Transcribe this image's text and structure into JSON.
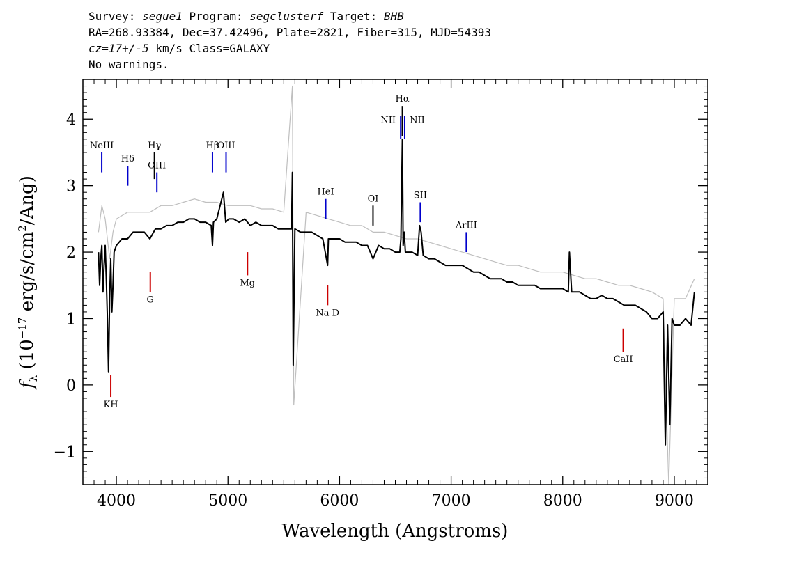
{
  "header": {
    "survey_label": "Survey:",
    "survey": "segue1",
    "program_label": "Program:",
    "program": "segclusterf",
    "target_label": "Target:",
    "target": "BHB",
    "line2": "RA=268.93384, Dec=37.42496, Plate=2821, Fiber=315, MJD=54393",
    "cz_label": "cz=17+/-5",
    "cz_rest": " km/s Class=GALAXY",
    "line4": "No warnings."
  },
  "chart_data": {
    "type": "line",
    "xlabel": "Wavelength (Angstroms)",
    "ylabel_fn": "f",
    "ylabel_sub": "λ",
    "ylabel_rest_a": " (10",
    "ylabel_exp": "−17",
    "ylabel_rest_b": " erg/s/cm",
    "ylabel_exp2": "2",
    "ylabel_rest_c": "/Ang)",
    "xlim": [
      3700,
      9300
    ],
    "ylim": [
      -1.5,
      4.6
    ],
    "xticks": [
      4000,
      5000,
      6000,
      7000,
      8000,
      9000
    ],
    "xtick_labels": [
      "4000",
      "5000",
      "6000",
      "7000",
      "8000",
      "9000"
    ],
    "yticks": [
      -1,
      0,
      1,
      2,
      3,
      4
    ],
    "ytick_labels": [
      "−1",
      "0",
      "1",
      "2",
      "3",
      "4"
    ],
    "series": [
      {
        "color": "#000000",
        "x": [
          3840,
          3850,
          3860,
          3870,
          3880,
          3890,
          3900,
          3910,
          3920,
          3930,
          3940,
          3950,
          3960,
          3970,
          3980,
          4000,
          4050,
          4100,
          4150,
          4200,
          4250,
          4300,
          4350,
          4400,
          4450,
          4500,
          4550,
          4600,
          4650,
          4700,
          4750,
          4800,
          4850,
          4861,
          4870,
          4900,
          4959,
          4980,
          5007,
          5050,
          5100,
          5150,
          5200,
          5250,
          5300,
          5350,
          5400,
          5450,
          5500,
          5550,
          5570,
          5577,
          5585,
          5600,
          5650,
          5700,
          5750,
          5800,
          5850,
          5893,
          5900,
          5950,
          6000,
          6050,
          6100,
          6150,
          6200,
          6250,
          6300,
          6350,
          6400,
          6450,
          6500,
          6540,
          6550,
          6563,
          6570,
          6580,
          6590,
          6600,
          6650,
          6700,
          6717,
          6731,
          6750,
          6800,
          6850,
          6900,
          6950,
          7000,
          7050,
          7100,
          7150,
          7200,
          7250,
          7300,
          7350,
          7400,
          7450,
          7500,
          7550,
          7600,
          7650,
          7700,
          7750,
          7800,
          7850,
          7900,
          7950,
          8000,
          8050,
          8060,
          8080,
          8100,
          8150,
          8200,
          8250,
          8300,
          8350,
          8400,
          8450,
          8500,
          8550,
          8600,
          8650,
          8700,
          8750,
          8800,
          8850,
          8900,
          8920,
          8940,
          8960,
          8980,
          9000,
          9050,
          9100,
          9150,
          9180
        ],
        "y": [
          2.0,
          1.5,
          1.9,
          2.1,
          1.4,
          1.8,
          2.1,
          1.6,
          1.0,
          0.2,
          1.3,
          1.9,
          1.1,
          1.5,
          2.0,
          2.1,
          2.2,
          2.2,
          2.3,
          2.3,
          2.3,
          2.2,
          2.35,
          2.35,
          2.4,
          2.4,
          2.45,
          2.45,
          2.5,
          2.5,
          2.45,
          2.45,
          2.4,
          2.1,
          2.45,
          2.5,
          2.9,
          2.45,
          2.5,
          2.5,
          2.45,
          2.5,
          2.4,
          2.45,
          2.4,
          2.4,
          2.4,
          2.35,
          2.35,
          2.35,
          2.35,
          3.2,
          0.3,
          2.35,
          2.3,
          2.3,
          2.3,
          2.25,
          2.2,
          1.8,
          2.2,
          2.2,
          2.2,
          2.15,
          2.15,
          2.15,
          2.1,
          2.1,
          1.9,
          2.1,
          2.05,
          2.05,
          2.0,
          2.0,
          2.2,
          3.7,
          2.1,
          2.3,
          2.0,
          2.0,
          2.0,
          1.95,
          2.4,
          2.3,
          1.95,
          1.9,
          1.9,
          1.85,
          1.8,
          1.8,
          1.8,
          1.8,
          1.75,
          1.7,
          1.7,
          1.65,
          1.6,
          1.6,
          1.6,
          1.55,
          1.55,
          1.5,
          1.5,
          1.5,
          1.5,
          1.45,
          1.45,
          1.45,
          1.45,
          1.45,
          1.4,
          2.0,
          1.4,
          1.4,
          1.4,
          1.35,
          1.3,
          1.3,
          1.35,
          1.3,
          1.3,
          1.25,
          1.2,
          1.2,
          1.2,
          1.15,
          1.1,
          1.0,
          1.0,
          1.1,
          -0.9,
          0.9,
          -0.6,
          1.0,
          0.9,
          0.9,
          1.0,
          0.9,
          1.4
        ]
      },
      {
        "color": "#bfbfbf",
        "x": [
          3840,
          3870,
          3900,
          3940,
          3970,
          4000,
          4100,
          4200,
          4300,
          4400,
          4500,
          4600,
          4700,
          4800,
          4900,
          5000,
          5100,
          5200,
          5300,
          5400,
          5500,
          5577,
          5590,
          5700,
          5800,
          5900,
          6000,
          6100,
          6200,
          6300,
          6400,
          6500,
          6600,
          6700,
          6800,
          6900,
          7000,
          7100,
          7200,
          7300,
          7400,
          7500,
          7600,
          7700,
          7800,
          7900,
          8000,
          8100,
          8200,
          8300,
          8400,
          8500,
          8600,
          8700,
          8800,
          8900,
          8950,
          9000,
          9100,
          9180
        ],
        "y": [
          2.3,
          2.7,
          2.5,
          1.9,
          2.3,
          2.5,
          2.6,
          2.6,
          2.6,
          2.7,
          2.7,
          2.75,
          2.8,
          2.75,
          2.75,
          2.7,
          2.7,
          2.7,
          2.65,
          2.65,
          2.6,
          4.5,
          -0.3,
          2.6,
          2.55,
          2.5,
          2.45,
          2.4,
          2.4,
          2.3,
          2.3,
          2.25,
          2.2,
          2.2,
          2.15,
          2.1,
          2.05,
          2.0,
          1.95,
          1.9,
          1.85,
          1.8,
          1.8,
          1.75,
          1.7,
          1.7,
          1.7,
          1.65,
          1.6,
          1.6,
          1.55,
          1.5,
          1.5,
          1.45,
          1.4,
          1.3,
          -1.5,
          1.3,
          1.3,
          1.6
        ]
      }
    ],
    "annotations": [
      {
        "label": "NeIII",
        "wave": 3869,
        "y0": 3.2,
        "y1": 3.5,
        "color": "#0000cc",
        "pos": "above"
      },
      {
        "label": "Hδ",
        "wave": 4102,
        "y0": 3.0,
        "y1": 3.3,
        "color": "#0000cc",
        "pos": "above"
      },
      {
        "label": "Hγ",
        "wave": 4341,
        "y0": 3.1,
        "y1": 3.5,
        "color": "#000000",
        "pos": "above"
      },
      {
        "label": "OIII",
        "wave": 4363,
        "y0": 2.9,
        "y1": 3.2,
        "color": "#0000cc",
        "pos": "above"
      },
      {
        "label": "Hβ",
        "wave": 4861,
        "y0": 3.2,
        "y1": 3.5,
        "color": "#0000cc",
        "pos": "above"
      },
      {
        "label": "OIII",
        "wave": 4983,
        "y0": 3.2,
        "y1": 3.5,
        "color": "#0000cc",
        "pos": "above"
      },
      {
        "label": "HeI",
        "wave": 5876,
        "y0": 2.5,
        "y1": 2.8,
        "color": "#0000cc",
        "pos": "above"
      },
      {
        "label": "OI",
        "wave": 6300,
        "y0": 2.4,
        "y1": 2.7,
        "color": "#000000",
        "pos": "above"
      },
      {
        "label": "NII",
        "wave": 6548,
        "y0": 3.7,
        "y1": 4.05,
        "color": "#0000cc",
        "pos": "above-left"
      },
      {
        "label": "Hα",
        "wave": 6563,
        "y0": 3.75,
        "y1": 4.2,
        "color": "#000000",
        "pos": "above"
      },
      {
        "label": "NII",
        "wave": 6584,
        "y0": 3.7,
        "y1": 4.05,
        "color": "#0000cc",
        "pos": "above-right"
      },
      {
        "label": "SII",
        "wave": 6724,
        "y0": 2.45,
        "y1": 2.75,
        "color": "#0000cc",
        "pos": "above"
      },
      {
        "label": "ArIII",
        "wave": 7136,
        "y0": 2.0,
        "y1": 2.3,
        "color": "#0000cc",
        "pos": "above"
      },
      {
        "label": "KH",
        "wave": 3950,
        "y0": 0.15,
        "y1": -0.18,
        "color": "#cc0000",
        "pos": "below"
      },
      {
        "label": "G",
        "wave": 4304,
        "y0": 1.7,
        "y1": 1.4,
        "color": "#cc0000",
        "pos": "below"
      },
      {
        "label": "Mg",
        "wave": 5175,
        "y0": 2.0,
        "y1": 1.65,
        "color": "#cc0000",
        "pos": "below"
      },
      {
        "label": "Na D",
        "wave": 5893,
        "y0": 1.5,
        "y1": 1.2,
        "color": "#cc0000",
        "pos": "below"
      },
      {
        "label": "CaII",
        "wave": 8542,
        "y0": 0.85,
        "y1": 0.5,
        "color": "#cc0000",
        "pos": "below"
      }
    ]
  }
}
